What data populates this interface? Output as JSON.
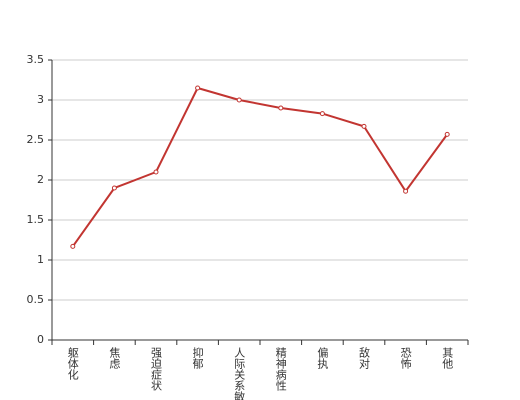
{
  "chart_data": {
    "type": "line",
    "categories": [
      "躯体化",
      "焦虑",
      "强迫症状",
      "抑郁",
      "人际关系敏感",
      "精神病性",
      "偏执",
      "敌对",
      "恐怖",
      "其他"
    ],
    "series": [
      {
        "color": "#c23531",
        "values": [
          1.17,
          1.9,
          2.1,
          3.15,
          3.0,
          2.9,
          2.83,
          2.67,
          1.86,
          2.57
        ]
      }
    ],
    "ylim": [
      0,
      3.5
    ],
    "yticks": [
      0,
      0.5,
      1,
      1.5,
      2,
      2.5,
      3,
      3.5
    ],
    "grid": true
  }
}
